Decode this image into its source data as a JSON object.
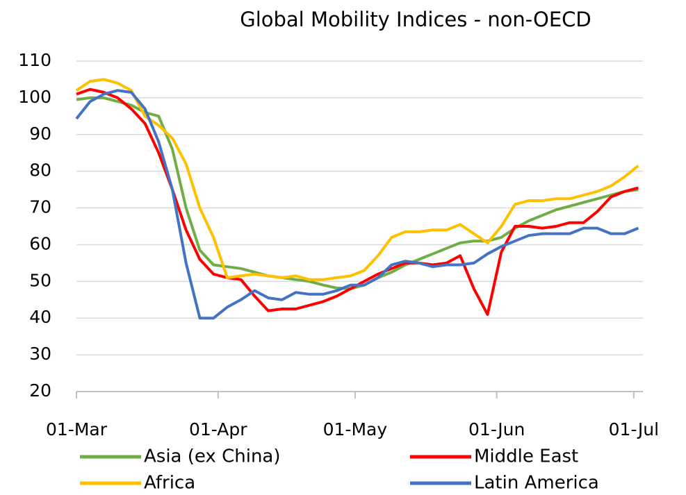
{
  "chart_data": {
    "type": "line",
    "title": "Global Mobility Indices - non-OECD",
    "x": [
      "01-Mar",
      "04-Mar",
      "07-Mar",
      "10-Mar",
      "13-Mar",
      "16-Mar",
      "19-Mar",
      "22-Mar",
      "25-Mar",
      "28-Mar",
      "31-Mar",
      "03-Apr",
      "06-Apr",
      "09-Apr",
      "12-Apr",
      "15-Apr",
      "18-Apr",
      "21-Apr",
      "24-Apr",
      "27-Apr",
      "30-Apr",
      "03-May",
      "06-May",
      "09-May",
      "12-May",
      "15-May",
      "18-May",
      "21-May",
      "24-May",
      "27-May",
      "30-May",
      "02-Jun",
      "05-Jun",
      "08-Jun",
      "11-Jun",
      "14-Jun",
      "17-Jun",
      "20-Jun",
      "23-Jun",
      "26-Jun",
      "29-Jun",
      "02-Jul"
    ],
    "series": [
      {
        "name": "Asia (ex China)",
        "color": "#70ad47",
        "values": [
          99.5,
          100,
          100,
          99,
          98,
          96,
          95,
          86,
          70,
          58.5,
          54.5,
          54,
          53.5,
          52.5,
          51.5,
          51,
          50.5,
          50,
          49,
          48.2,
          48,
          49,
          51,
          52.5,
          54.5,
          56,
          57.5,
          59,
          60.5,
          61,
          61,
          62,
          64.5,
          66.5,
          68,
          69.5,
          70.5,
          71.5,
          72.5,
          73.5,
          74.5,
          75
        ]
      },
      {
        "name": "Middle East",
        "color": "#ff0000",
        "values": [
          101,
          102.3,
          101.5,
          100,
          97,
          93,
          85,
          75,
          64,
          56,
          52,
          51,
          50.5,
          46,
          42,
          42.5,
          42.5,
          43.5,
          44.5,
          46,
          48,
          50,
          52,
          53.5,
          55,
          55,
          54.5,
          55,
          57,
          48,
          41,
          58,
          65,
          65,
          64.5,
          65,
          66,
          66,
          69,
          73,
          74.5,
          75.5
        ]
      },
      {
        "name": "Africa",
        "color": "#ffc000",
        "values": [
          102,
          104.5,
          105,
          104,
          102,
          95,
          92.5,
          89,
          82,
          70,
          62,
          51,
          51.5,
          52,
          51.5,
          51,
          51.5,
          50.5,
          50.5,
          51,
          51.5,
          53,
          57,
          62,
          63.5,
          63.5,
          64,
          64,
          65.5,
          63,
          60.5,
          65,
          71,
          72,
          72,
          72.5,
          72.5,
          73.5,
          74.5,
          76,
          78.5,
          81.5
        ]
      },
      {
        "name": "Latin America",
        "color": "#4472c4",
        "values": [
          94.3,
          99,
          101,
          102,
          101.5,
          97,
          88,
          75,
          55,
          40,
          40,
          43,
          45,
          47.5,
          45.5,
          45,
          47,
          46.5,
          46.5,
          47.5,
          49,
          49,
          51,
          54.5,
          55.5,
          55,
          54,
          54.5,
          54.5,
          55,
          57.5,
          59.5,
          61,
          62.5,
          63,
          63,
          63,
          64.5,
          64.5,
          63,
          63,
          64.5
        ]
      }
    ],
    "xlim": [
      "01-Mar",
      "03-Jul"
    ],
    "xticks": [
      "01-Mar",
      "01-Apr",
      "01-May",
      "01-Jun",
      "01-Jul"
    ],
    "ylim": [
      20,
      110
    ],
    "yticks": [
      20,
      30,
      40,
      50,
      60,
      70,
      80,
      90,
      100,
      110
    ],
    "grid": true
  }
}
